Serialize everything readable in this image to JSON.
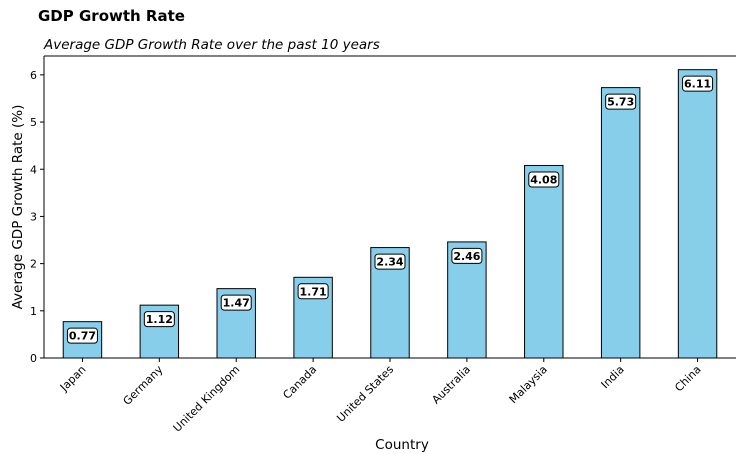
{
  "chart_data": {
    "type": "bar",
    "title": "GDP Growth Rate",
    "subtitle": "Average GDP Growth Rate over the past 10 years",
    "xlabel": "Country",
    "ylabel": "Average GDP Growth Rate (%)",
    "categories": [
      "Japan",
      "Germany",
      "United Kingdom",
      "Canada",
      "United States",
      "Australia",
      "Malaysia",
      "India",
      "China"
    ],
    "values": [
      0.77,
      1.12,
      1.47,
      1.71,
      2.34,
      2.46,
      4.08,
      5.73,
      6.11
    ],
    "data_labels": [
      "0.77",
      "1.12",
      "1.47",
      "1.71",
      "2.34",
      "2.46",
      "4.08",
      "5.73",
      "6.11"
    ],
    "ylim": [
      0,
      6.4
    ],
    "yticks": [
      0,
      1,
      2,
      3,
      4,
      5,
      6
    ],
    "bar_color": "#87CEEB",
    "bar_edge_color": "#000000",
    "grid": false,
    "legend": "none"
  }
}
